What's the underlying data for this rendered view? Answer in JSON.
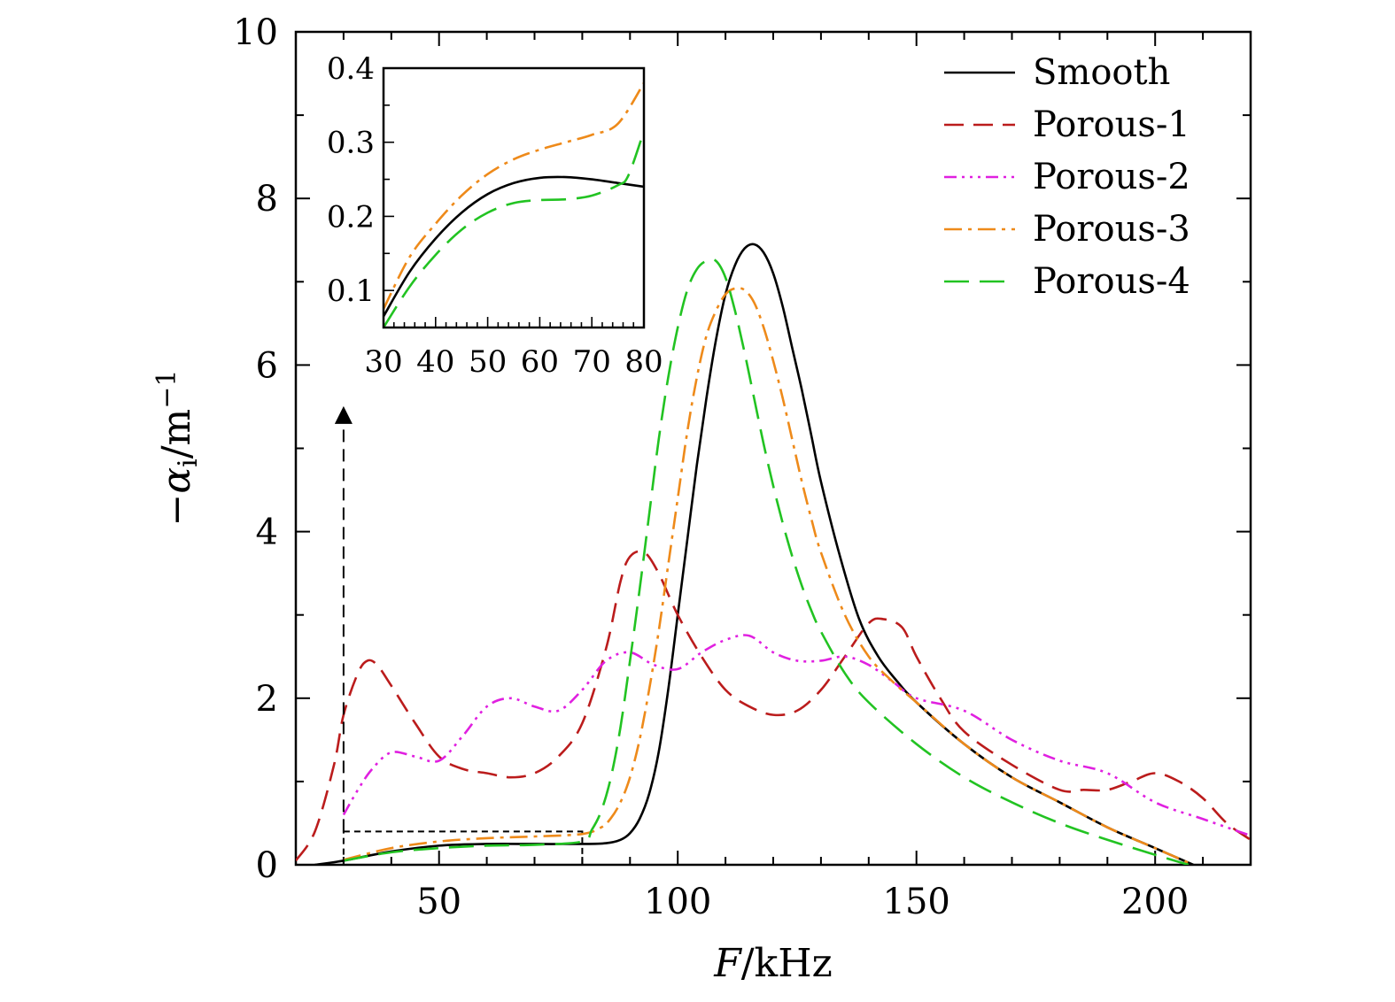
{
  "chart_data": {
    "type": "line",
    "xlabel_italic": "F",
    "xlabel_rest": "/kHz",
    "ylabel_main": "−α",
    "ylabel_sub": "i",
    "ylabel_unit": "/m",
    "ylabel_sup": "−1",
    "xlim": [
      20,
      220
    ],
    "ylim": [
      0,
      10
    ],
    "xticks": [
      50,
      100,
      150,
      200
    ],
    "yticks": [
      0,
      2,
      4,
      6,
      8,
      10
    ],
    "legend_position": "top-right",
    "series": [
      {
        "name": "Smooth",
        "color": "#000000",
        "dash": "solid",
        "x": [
          24,
          30,
          40,
          50,
          60,
          70,
          80,
          85,
          88,
          90,
          92,
          94,
          96,
          98,
          100,
          102,
          104,
          106,
          108,
          110,
          112,
          114,
          116,
          118,
          120,
          122,
          124,
          126,
          128,
          130,
          134,
          138,
          142,
          146,
          150,
          160,
          170,
          180,
          190,
          200,
          208
        ],
        "y": [
          0,
          0.05,
          0.16,
          0.23,
          0.25,
          0.25,
          0.25,
          0.26,
          0.3,
          0.38,
          0.55,
          0.85,
          1.35,
          2.1,
          3.0,
          3.9,
          4.8,
          5.6,
          6.3,
          6.85,
          7.2,
          7.4,
          7.45,
          7.35,
          7.1,
          6.7,
          6.2,
          5.7,
          5.15,
          4.6,
          3.7,
          2.95,
          2.5,
          2.2,
          1.95,
          1.45,
          1.05,
          0.75,
          0.45,
          0.2,
          0
        ]
      },
      {
        "name": "Porous-1",
        "color": "#bb1c1c",
        "dash": "22 11",
        "x": [
          20,
          24,
          28,
          30,
          33,
          35,
          37,
          40,
          45,
          50,
          55,
          60,
          65,
          70,
          75,
          80,
          85,
          88,
          90,
          93,
          96,
          100,
          105,
          110,
          115,
          120,
          125,
          130,
          135,
          140,
          143,
          147,
          150,
          155,
          160,
          170,
          180,
          185,
          190,
          195,
          200,
          205,
          210,
          215,
          220
        ],
        "y": [
          0.05,
          0.4,
          1.2,
          1.8,
          2.3,
          2.45,
          2.4,
          2.15,
          1.7,
          1.3,
          1.15,
          1.1,
          1.05,
          1.1,
          1.3,
          1.7,
          2.6,
          3.4,
          3.7,
          3.75,
          3.5,
          3.0,
          2.5,
          2.1,
          1.9,
          1.8,
          1.85,
          2.1,
          2.5,
          2.9,
          2.95,
          2.85,
          2.5,
          2.0,
          1.6,
          1.2,
          0.9,
          0.9,
          0.9,
          1.0,
          1.1,
          1.0,
          0.8,
          0.5,
          0.3
        ]
      },
      {
        "name": "Porous-2",
        "color": "#e020e0",
        "dash": "14 6 3 6 3 6 3 6",
        "x": [
          30,
          33,
          36,
          40,
          45,
          50,
          55,
          60,
          65,
          70,
          75,
          80,
          85,
          90,
          95,
          100,
          105,
          110,
          115,
          120,
          125,
          130,
          135,
          140,
          145,
          150,
          160,
          170,
          180,
          190,
          200,
          210,
          220
        ],
        "y": [
          0.6,
          0.9,
          1.15,
          1.35,
          1.3,
          1.25,
          1.55,
          1.9,
          2.0,
          1.9,
          1.85,
          2.1,
          2.45,
          2.55,
          2.4,
          2.35,
          2.55,
          2.7,
          2.75,
          2.55,
          2.45,
          2.45,
          2.5,
          2.4,
          2.2,
          2.0,
          1.85,
          1.5,
          1.25,
          1.1,
          0.75,
          0.55,
          0.35
        ]
      },
      {
        "name": "Porous-3",
        "color": "#ee8a1a",
        "dash": "20 7 4 7",
        "x": [
          30,
          40,
          50,
          60,
          70,
          80,
          84,
          86,
          88,
          90,
          92,
          94,
          96,
          98,
          100,
          102,
          104,
          106,
          108,
          110,
          112,
          114,
          116,
          118,
          120,
          122,
          124,
          126,
          128,
          130,
          135,
          140,
          145,
          150,
          160,
          170,
          180,
          190,
          200,
          208
        ],
        "y": [
          0.06,
          0.2,
          0.28,
          0.32,
          0.34,
          0.37,
          0.45,
          0.56,
          0.75,
          1.05,
          1.5,
          2.1,
          2.8,
          3.6,
          4.4,
          5.2,
          5.85,
          6.35,
          6.65,
          6.85,
          6.92,
          6.9,
          6.75,
          6.45,
          6.05,
          5.6,
          5.1,
          4.6,
          4.15,
          3.75,
          3.0,
          2.5,
          2.2,
          1.95,
          1.45,
          1.05,
          0.75,
          0.45,
          0.2,
          0
        ]
      },
      {
        "name": "Porous-4",
        "color": "#22c322",
        "dash": "28 12",
        "x": [
          30,
          40,
          50,
          60,
          70,
          80,
          82,
          84,
          86,
          88,
          90,
          92,
          94,
          96,
          98,
          100,
          102,
          104,
          106,
          108,
          110,
          112,
          114,
          116,
          118,
          120,
          122,
          124,
          126,
          128,
          130,
          135,
          140,
          150,
          160,
          170,
          180,
          190,
          200,
          207
        ],
        "y": [
          0.05,
          0.15,
          0.2,
          0.23,
          0.24,
          0.28,
          0.42,
          0.65,
          1.05,
          1.65,
          2.45,
          3.3,
          4.2,
          5.1,
          5.85,
          6.45,
          6.9,
          7.15,
          7.25,
          7.25,
          7.05,
          6.65,
          6.15,
          5.6,
          5.05,
          4.55,
          4.1,
          3.7,
          3.35,
          3.05,
          2.8,
          2.3,
          1.95,
          1.45,
          1.05,
          0.75,
          0.5,
          0.3,
          0.12,
          0
        ]
      }
    ],
    "annotation": {
      "type": "zoom-region",
      "x_range": [
        30,
        80
      ],
      "y_range": [
        0,
        0.4
      ],
      "arrow_to_y": 5.4
    },
    "inset": {
      "xlim": [
        30,
        80
      ],
      "ylim": [
        0.05,
        0.4
      ],
      "xticks": [
        30,
        40,
        50,
        60,
        70,
        80
      ],
      "yticks": [
        0.1,
        0.2,
        0.3,
        0.4
      ],
      "ytick_labels": [
        "0.1",
        "0.2",
        "0.3",
        "0.4"
      ],
      "series": [
        {
          "name": "Smooth",
          "color": "#000000",
          "dash": "solid",
          "x": [
            30,
            35,
            40,
            45,
            50,
            55,
            60,
            65,
            70,
            75,
            80
          ],
          "y": [
            0.065,
            0.125,
            0.17,
            0.205,
            0.23,
            0.245,
            0.252,
            0.253,
            0.25,
            0.245,
            0.24
          ]
        },
        {
          "name": "Porous-3",
          "color": "#ee8a1a",
          "dash": "20 7 4 7",
          "x": [
            30,
            35,
            40,
            45,
            50,
            55,
            60,
            65,
            70,
            75,
            80
          ],
          "y": [
            0.075,
            0.145,
            0.19,
            0.228,
            0.257,
            0.277,
            0.29,
            0.3,
            0.31,
            0.325,
            0.38
          ]
        },
        {
          "name": "Porous-4",
          "color": "#22c322",
          "dash": "28 12",
          "x": [
            30,
            35,
            40,
            45,
            50,
            55,
            60,
            65,
            70,
            75,
            77,
            80
          ],
          "y": [
            0.05,
            0.105,
            0.148,
            0.182,
            0.205,
            0.218,
            0.222,
            0.223,
            0.228,
            0.242,
            0.255,
            0.315
          ]
        }
      ]
    }
  }
}
